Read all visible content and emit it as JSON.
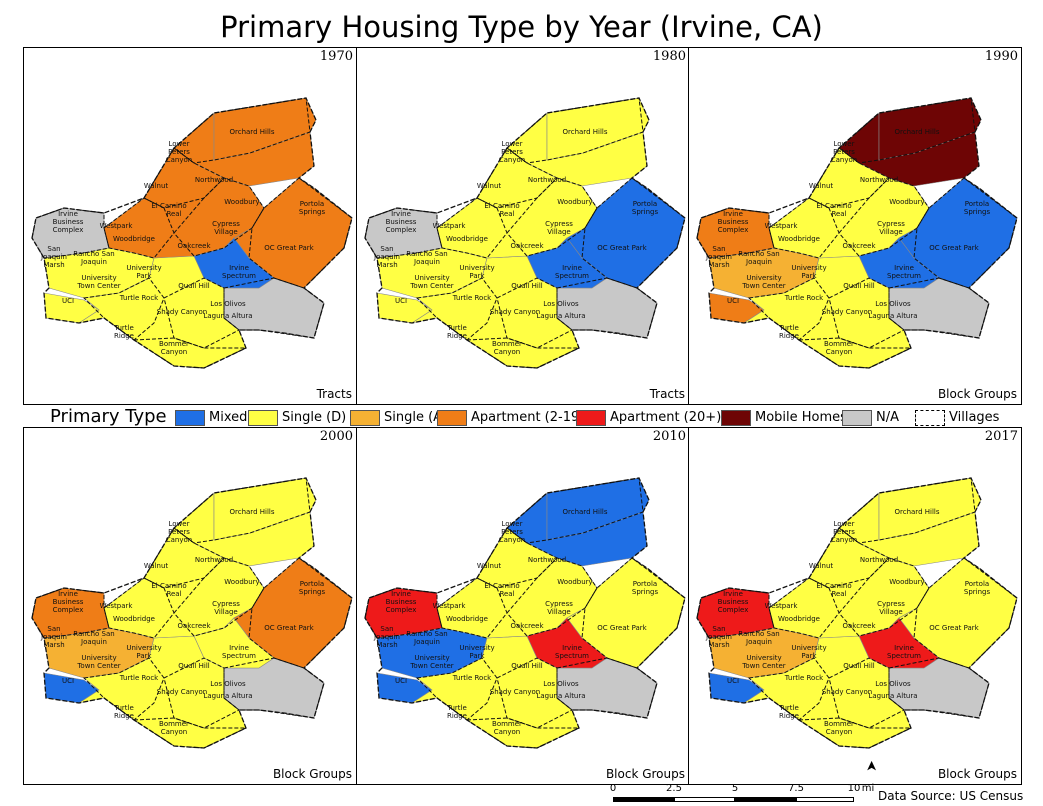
{
  "title": "Primary Housing Type by Year (Irvine, CA)",
  "colors": {
    "mixed": "#1f6fe5",
    "single_d": "#ffff44",
    "single_a": "#f5b133",
    "apt_small": "#ef7d17",
    "apt_large": "#ee1a1a",
    "mobile": "#6e0505",
    "na": "#c8c8c8"
  },
  "legend": {
    "title": "Primary Type",
    "items": [
      {
        "label": "Mixed",
        "color": "#1f6fe5",
        "style": "fill"
      },
      {
        "label": "Single (D)",
        "color": "#ffff44",
        "style": "fill"
      },
      {
        "label": "Single (A)",
        "color": "#f5b133",
        "style": "fill"
      },
      {
        "label": "Apartment (2-19)",
        "color": "#ef7d17",
        "style": "fill"
      },
      {
        "label": "Apartment (20+)",
        "color": "#ee1a1a",
        "style": "fill"
      },
      {
        "label": "Mobile Homes",
        "color": "#6e0505",
        "style": "fill"
      },
      {
        "label": "N/A",
        "color": "#c8c8c8",
        "style": "fill"
      },
      {
        "label": "Villages",
        "color": "#ffffff",
        "style": "dashed"
      }
    ]
  },
  "village_labels": [
    "Orchard Hills",
    "Lower Peters Canyon",
    "Northwood",
    "Walnut",
    "Woodbury",
    "Portola Springs",
    "Irvine Business Complex",
    "Westpark",
    "El Camino Real",
    "Cypress Village",
    "Woodbridge",
    "Oakcreek",
    "OC Great Park",
    "San Joaquin Marsh",
    "Rancho San Joaquin",
    "University Park",
    "Irvine Spectrum",
    "University Town Center",
    "Quail Hill",
    "UCI",
    "Turtle Rock",
    "Los Olivos",
    "Shady Canyon",
    "Laguna Altura",
    "Turtle Ridge",
    "Bommer Canyon"
  ],
  "panels": [
    {
      "year": "1970",
      "unit": "Tracts",
      "regions": {
        "north": "apt_small",
        "center": "apt_small",
        "east": "apt_small",
        "spectrum": "mixed",
        "west": "na",
        "southwest": "single_d",
        "south": "single_d",
        "southeast": "na",
        "uci": "single_d",
        "northtip": "apt_small"
      }
    },
    {
      "year": "1980",
      "unit": "Tracts",
      "regions": {
        "north": "single_d",
        "center": "single_d",
        "east": "mixed",
        "spectrum": "mixed",
        "west": "na",
        "southwest": "single_d",
        "south": "single_d",
        "southeast": "na",
        "uci": "single_d",
        "northtip": "single_d"
      }
    },
    {
      "year": "1990",
      "unit": "Block Groups",
      "regions": {
        "north": "mobile",
        "center": "single_d",
        "east": "mixed",
        "spectrum": "mixed",
        "west": "apt_small",
        "southwest": "single_a",
        "south": "single_d",
        "southeast": "na",
        "uci": "apt_small",
        "northtip": "mobile"
      }
    },
    {
      "year": "2000",
      "unit": "Block Groups",
      "regions": {
        "north": "single_d",
        "center": "single_d",
        "east": "apt_small",
        "spectrum": "single_d",
        "west": "apt_small",
        "southwest": "single_a",
        "south": "single_d",
        "southeast": "na",
        "uci": "mixed",
        "northtip": "single_d"
      }
    },
    {
      "year": "2010",
      "unit": "Block Groups",
      "regions": {
        "north": "mixed",
        "center": "single_d",
        "east": "single_d",
        "spectrum": "apt_large",
        "west": "apt_large",
        "southwest": "mixed",
        "south": "single_d",
        "southeast": "na",
        "uci": "mixed",
        "northtip": "mixed"
      }
    },
    {
      "year": "2017",
      "unit": "Block Groups",
      "regions": {
        "north": "single_d",
        "center": "single_d",
        "east": "single_d",
        "spectrum": "apt_large",
        "west": "apt_large",
        "southwest": "single_a",
        "south": "single_d",
        "southeast": "na",
        "uci": "mixed",
        "northtip": "single_d"
      }
    }
  ],
  "scale": {
    "ticks": [
      "0",
      "2.5",
      "5",
      "7.5",
      "10"
    ],
    "unit": "mi"
  },
  "source": "Data Source: US Census"
}
